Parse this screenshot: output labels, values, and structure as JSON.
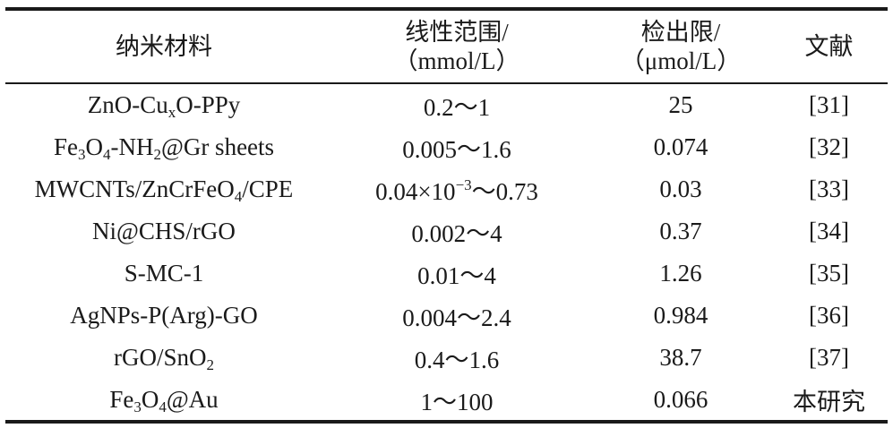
{
  "table": {
    "headers": {
      "material": "纳米材料",
      "range_line1": "线性范围/",
      "range_line2": "（mmol/L）",
      "lod_line1": "检出限/",
      "lod_line2": "（μmol/L）",
      "ref": "文献"
    },
    "rows": [
      {
        "material": [
          "ZnO-Cu",
          "x",
          "O-PPy"
        ],
        "range": "0.2～1",
        "lod": "25",
        "ref": "[31]"
      },
      {
        "material": [
          "Fe",
          "3",
          "O",
          "4",
          "-NH",
          "2",
          "@Gr sheets"
        ],
        "range": "0.005～1.6",
        "lod": "0.074",
        "ref": "[32]"
      },
      {
        "material": [
          "MWCNTs/ZnCrFeO",
          "4",
          "/CPE"
        ],
        "range": [
          "0.04×10",
          "−3",
          "～0.73"
        ],
        "lod": "0.03",
        "ref": "[33]"
      },
      {
        "material": "Ni@CHS/rGO",
        "range": "0.002～4",
        "lod": "0.37",
        "ref": "[34]"
      },
      {
        "material": "S-MC-1",
        "range": "0.01～4",
        "lod": "1.26",
        "ref": "[35]"
      },
      {
        "material": "AgNPs-P(Arg)-GO",
        "range": "0.004～2.4",
        "lod": "0.984",
        "ref": "[36]"
      },
      {
        "material": [
          "rGO/SnO",
          "2"
        ],
        "range": "0.4～1.6",
        "lod": "38.7",
        "ref": "[37]"
      },
      {
        "material": [
          "Fe",
          "3",
          "O",
          "4",
          "@Au"
        ],
        "range": "1～100",
        "lod": "0.066",
        "ref": "本研究"
      }
    ]
  }
}
